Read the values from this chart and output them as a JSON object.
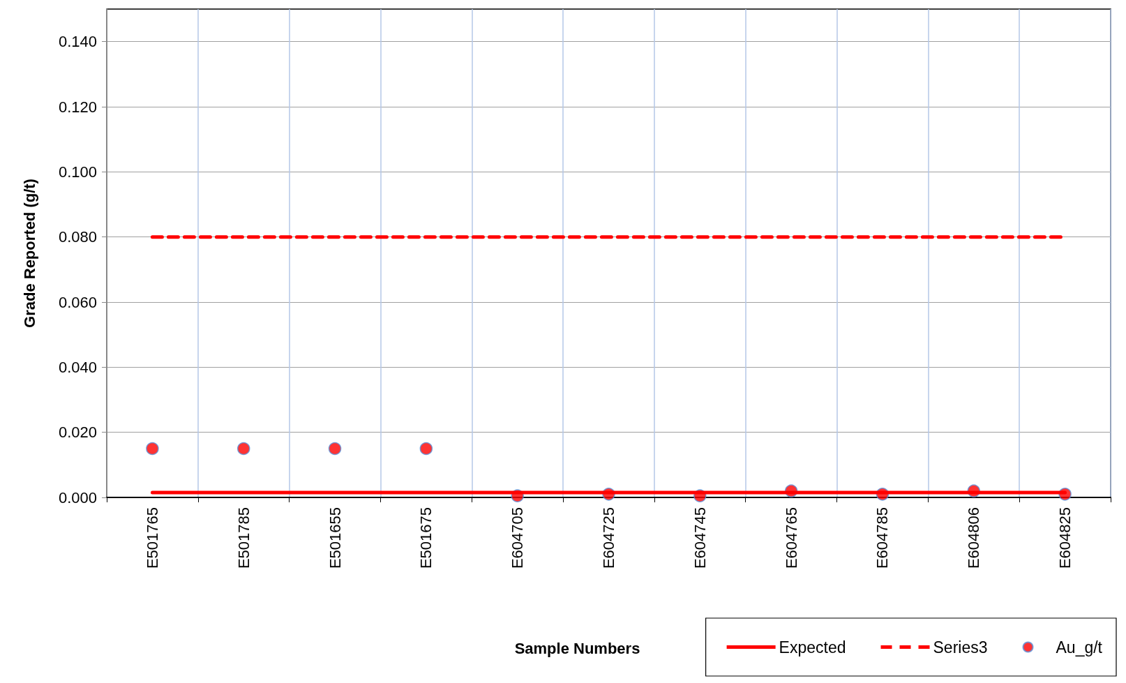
{
  "chart_data": {
    "type": "line",
    "xlabel": "Sample Numbers",
    "ylabel": "Grade Reported (g/t)",
    "categories": [
      "E501765",
      "E501785",
      "E501655",
      "E501675",
      "E604705",
      "E604725",
      "E604745",
      "E604765",
      "E604785",
      "E604806",
      "E604825"
    ],
    "series": [
      {
        "name": "Expected",
        "color": "#ff0000",
        "line_style": "solid",
        "marker": "none",
        "values": [
          0.0015,
          0.0015,
          0.0015,
          0.0015,
          0.0015,
          0.0015,
          0.0015,
          0.0015,
          0.0015,
          0.0015,
          0.0015
        ]
      },
      {
        "name": "Series3",
        "color": "#ff0000",
        "line_style": "dashed",
        "marker": "none",
        "values": [
          0.08,
          0.08,
          0.08,
          0.08,
          0.08,
          0.08,
          0.08,
          0.08,
          0.08,
          0.08,
          0.08
        ]
      },
      {
        "name": "Au_g/t",
        "type": "scatter",
        "color": "#ff0000",
        "marker": "circle",
        "values": [
          0.015,
          0.015,
          0.015,
          0.015,
          0.0005,
          0.001,
          0.0005,
          0.002,
          0.001,
          0.002,
          0.001
        ]
      }
    ],
    "ylim": [
      0,
      0.15
    ],
    "yticks": [
      {
        "value": 0,
        "label": "0.000"
      },
      {
        "value": 0.02,
        "label": "0.020"
      },
      {
        "value": 0.04,
        "label": "0.040"
      },
      {
        "value": 0.06,
        "label": "0.060"
      },
      {
        "value": 0.08,
        "label": "0.080"
      },
      {
        "value": 0.1,
        "label": "0.100"
      },
      {
        "value": 0.12,
        "label": "0.120"
      },
      {
        "value": 0.14,
        "label": "0.140"
      }
    ],
    "grid": true,
    "legend": "bottom right"
  }
}
